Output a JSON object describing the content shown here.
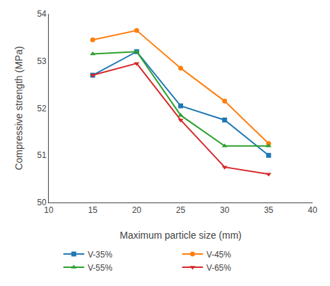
{
  "chart_data": {
    "type": "line",
    "title": "",
    "xlabel": "Maximum particle size (mm)",
    "ylabel": "Compressive strength (MPa)",
    "x": [
      15,
      20,
      25,
      30,
      35
    ],
    "series": [
      {
        "name": "V-35%",
        "values": [
          52.7,
          53.2,
          52.05,
          51.75,
          51.0
        ],
        "marker": "square",
        "line_style": "solid"
      },
      {
        "name": "V-45%",
        "values": [
          53.45,
          53.65,
          52.85,
          52.15,
          51.25
        ],
        "marker": "circle",
        "line_style": "solid"
      },
      {
        "name": "V-55%",
        "values": [
          53.15,
          53.2,
          51.85,
          51.2,
          51.2
        ],
        "marker": "triangle-up",
        "line_style": "solid"
      },
      {
        "name": "V-65%",
        "values": [
          52.7,
          52.95,
          51.75,
          50.75,
          50.6
        ],
        "marker": "triangle-down",
        "line_style": "solid"
      }
    ],
    "xlim": [
      10,
      40
    ],
    "xticks": [
      10,
      15,
      20,
      25,
      30,
      35,
      40
    ],
    "ylim": [
      50,
      54
    ],
    "yticks": [
      50,
      51,
      52,
      53,
      54
    ],
    "grid": false,
    "legend": "bottom"
  }
}
